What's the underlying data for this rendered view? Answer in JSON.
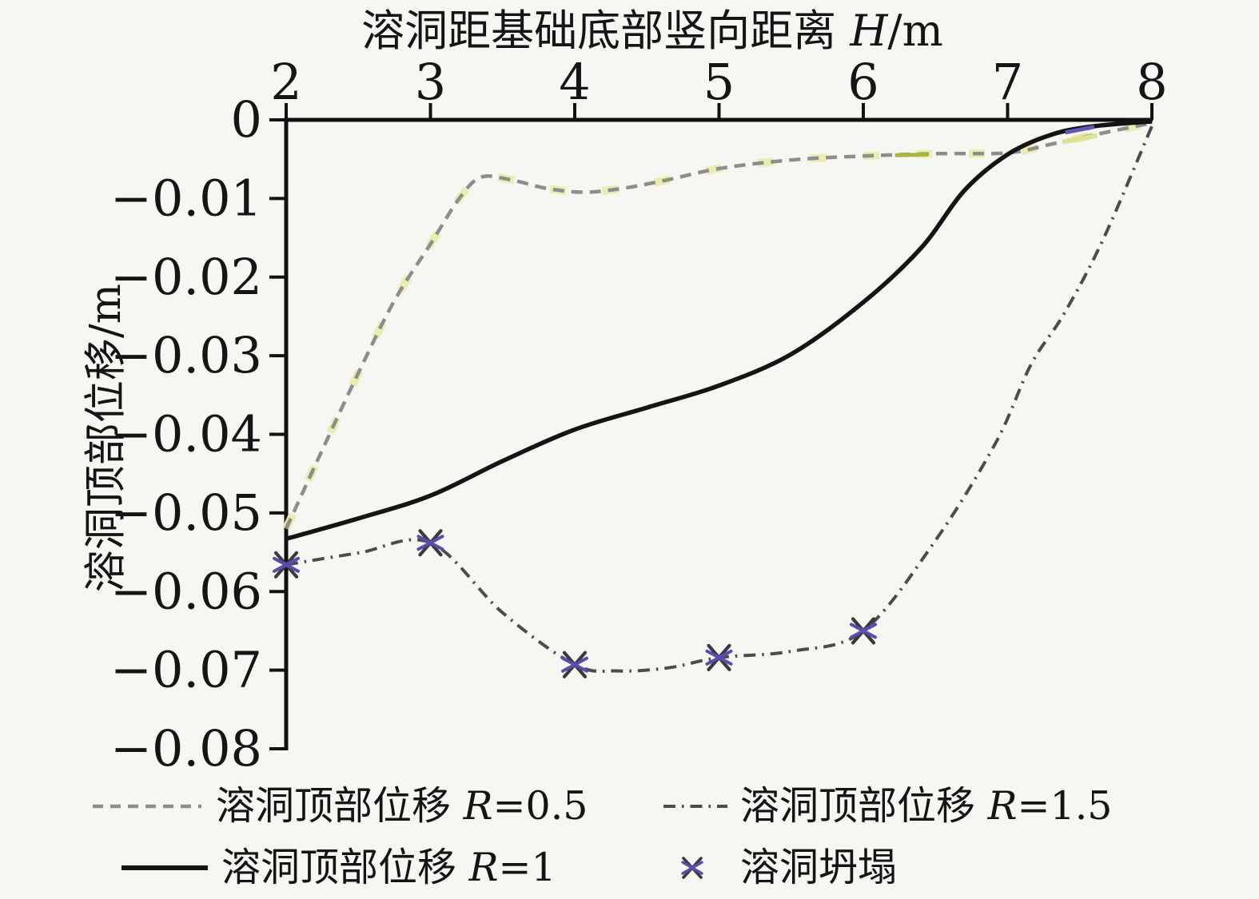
{
  "figure": {
    "background": "#f6f6f3",
    "axis_color": "#111111"
  },
  "chart_data": {
    "type": "line",
    "title": {
      "prefix": "溶洞距基础底部竖向距离 ",
      "var": "H",
      "suffix": "/m"
    },
    "title_position": "top",
    "ylabel": "溶洞顶部位移/m",
    "xlim": [
      2,
      8
    ],
    "ylim": [
      -0.08,
      0
    ],
    "grid": false,
    "x_ticks": [
      2,
      3,
      4,
      5,
      6,
      7,
      8
    ],
    "x_tick_labels": [
      "2",
      "3",
      "4",
      "5",
      "6",
      "7",
      "8"
    ],
    "y_ticks": [
      0,
      -0.01,
      -0.02,
      -0.03,
      -0.04,
      -0.05,
      -0.06,
      -0.07,
      -0.08
    ],
    "y_tick_labels": [
      "0",
      "−0.01",
      "−0.02",
      "−0.03",
      "−0.04",
      "−0.05",
      "−0.06",
      "−0.07",
      "−0.08"
    ],
    "series": [
      {
        "name": "溶洞顶部位移 R=0.5",
        "style": "dashed",
        "color": "#8d8d8d",
        "underlay_color": "#e9ecab",
        "width": 4.5,
        "points": [
          [
            2,
            -0.052
          ],
          [
            2.25,
            -0.042
          ],
          [
            2.5,
            -0.0322
          ],
          [
            2.75,
            -0.023
          ],
          [
            3,
            -0.0158
          ],
          [
            3.2,
            -0.01
          ],
          [
            3.35,
            -0.0073
          ],
          [
            3.55,
            -0.0076
          ],
          [
            3.8,
            -0.0087
          ],
          [
            4.05,
            -0.0092
          ],
          [
            4.3,
            -0.0088
          ],
          [
            4.6,
            -0.0078
          ],
          [
            5,
            -0.0062
          ],
          [
            5.5,
            -0.0051
          ],
          [
            6,
            -0.0046
          ],
          [
            6.5,
            -0.0043
          ],
          [
            7,
            -0.0042
          ],
          [
            7.3,
            -0.0031
          ],
          [
            7.6,
            -0.0019
          ],
          [
            8,
            -0.0004
          ]
        ]
      },
      {
        "name": "溶洞顶部位移 R=1",
        "style": "solid",
        "color": "#141414",
        "width": 5.5,
        "points": [
          [
            2,
            -0.0533
          ],
          [
            2.5,
            -0.0507
          ],
          [
            3,
            -0.0478
          ],
          [
            3.5,
            -0.0434
          ],
          [
            4,
            -0.0394
          ],
          [
            4.5,
            -0.0366
          ],
          [
            5,
            -0.0338
          ],
          [
            5.5,
            -0.0298
          ],
          [
            6,
            -0.0232
          ],
          [
            6.4,
            -0.0163
          ],
          [
            6.7,
            -0.009
          ],
          [
            7,
            -0.0044
          ],
          [
            7.3,
            -0.0019
          ],
          [
            7.6,
            -0.0008
          ],
          [
            8,
            -0.0002
          ]
        ]
      },
      {
        "name": "溶洞顶部位移 R=1.5",
        "style": "dashdot",
        "color": "#4c4c4c",
        "width": 4,
        "points": [
          [
            2,
            -0.0566
          ],
          [
            2.5,
            -0.0551
          ],
          [
            3,
            -0.0538
          ],
          [
            3.5,
            -0.0627
          ],
          [
            4,
            -0.0693
          ],
          [
            4.3,
            -0.0701
          ],
          [
            4.65,
            -0.0697
          ],
          [
            5,
            -0.0684
          ],
          [
            5.5,
            -0.0676
          ],
          [
            6,
            -0.065
          ],
          [
            6.5,
            -0.0535
          ],
          [
            6.92,
            -0.041
          ],
          [
            7.16,
            -0.0312
          ],
          [
            7.39,
            -0.0247
          ],
          [
            7.66,
            -0.0153
          ],
          [
            8,
            -0.0008
          ]
        ]
      }
    ],
    "markers": {
      "name": "溶洞坍塌",
      "shape": "x",
      "color": "#5b4db0",
      "halo_color": "#3a3a3a",
      "points": [
        [
          2,
          -0.0566
        ],
        [
          3,
          -0.0538
        ],
        [
          4,
          -0.0693
        ],
        [
          5,
          -0.0684
        ],
        [
          6,
          -0.065
        ]
      ]
    },
    "overlap_segments": [
      {
        "color": "#6257b5",
        "width": 5,
        "from": [
          7.4,
          -0.0016
        ],
        "to": [
          7.6,
          -0.0009
        ]
      },
      {
        "color": "#dde294",
        "width": 6,
        "from": [
          7.38,
          -0.0028
        ],
        "to": [
          7.62,
          -0.002
        ]
      },
      {
        "color": "#aab63a",
        "width": 5,
        "from": [
          6.22,
          -0.0045
        ],
        "to": [
          6.45,
          -0.0044
        ]
      }
    ],
    "legend_position": "below"
  },
  "legend": {
    "items": [
      {
        "id": "r05",
        "style": "dashed",
        "color": "#8d8d8d",
        "label": "溶洞顶部位移 ",
        "r_var": "R",
        "r_rest": "=0.5"
      },
      {
        "id": "r1",
        "style": "solid",
        "color": "#141414",
        "label": "溶洞顶部位移 ",
        "r_var": "R",
        "r_rest": "=1"
      },
      {
        "id": "r15",
        "style": "dashdot",
        "color": "#4c4c4c",
        "label": "溶洞顶部位移 ",
        "r_var": "R",
        "r_rest": "=1.5"
      },
      {
        "id": "collapse",
        "style": "xmark",
        "color": "#5b4db0",
        "label": "溶洞坍塌",
        "r_var": "",
        "r_rest": ""
      }
    ]
  }
}
